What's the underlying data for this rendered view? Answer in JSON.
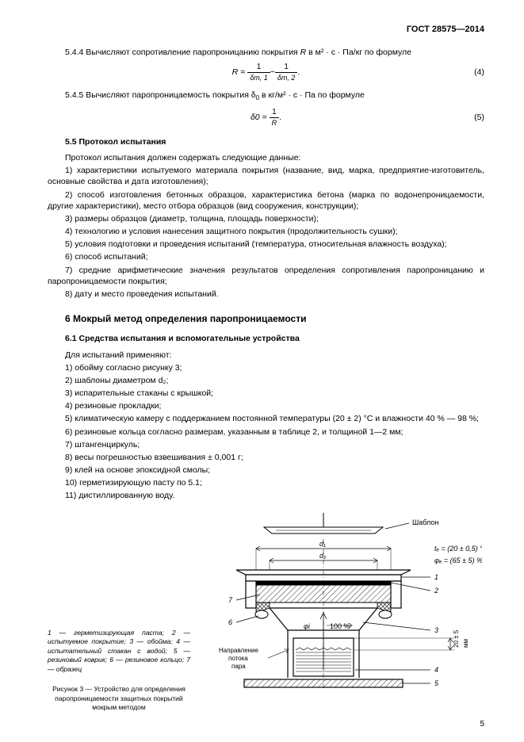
{
  "header": "ГОСТ 28575—2014",
  "p544_pre": "5.4.4 Вычисляют сопротивление паропроницанию покрытия ",
  "p544_R": "R",
  "p544_post": " в м² · с · Па/кг по формуле",
  "formula4": {
    "lhs": "R =",
    "f1_num": "1",
    "f1_den": "δm, 1",
    "minus": " − ",
    "f2_num": "1",
    "f2_den": "δm, 2",
    "dot": ".",
    "num": "(4)"
  },
  "p545_pre": "5.4.5 Вычисляют паропроницаемость покрытия δ",
  "p545_sub": "0",
  "p545_post": " в кг/м² · с · Па по формуле",
  "formula5": {
    "lhs": "δ0 =",
    "num_top": "1",
    "den": "R",
    "dot": ".",
    "num": "(5)"
  },
  "s55_title": "5.5 Протокол испытания",
  "s55_intro": "Протокол испытания должен содержать следующие данные:",
  "s55_items": [
    "1) характеристики испытуемого материала покрытия (название, вид, марка, предприятие-изготовитель, основные свойства и дата изготовления);",
    "2) способ изготовления бетонных образцов, характеристика бетона (марка по водонепроницаемости, другие характеристики), место отбора образцов (вид сооружения, конструкции);",
    "3) размеры образцов (диаметр, толщина, площадь поверхности);",
    "4) технологию и условия нанесения защитного покрытия (продолжительность сушки);",
    "5) условия подготовки и проведения испытаний (температура, относительная влажность воздуха);",
    "6) способ испытаний;",
    "7) средние арифметические значения результатов определения сопротивления паропроницанию и паропроницаемости покрытия;",
    "8) дату и место проведения испытаний."
  ],
  "h6": "6  Мокрый метод определения паропроницаемости",
  "s61_title": "6.1 Средства испытания и вспомогательные устройства",
  "s61_intro": "Для испытаний применяют:",
  "s61_items": [
    "1) обойму согласно рисунку 3;",
    "2) шаблоны диаметром d₂;",
    "3) испарительные стаканы с крышкой;",
    "4) резиновые прокладки;",
    "5) климатическую камеру с поддержанием постоянной температуры (20 ± 2) °C и влажности 40 % — 98 %;",
    "6) резиновые кольца согласно размерам, указанным в таблице 2, и толщиной 1—2 мм;",
    "7) штангенциркуль;",
    "8) весы погрешностью взвешивания ± 0,001 г;",
    "9) клей на основе эпоксидной смолы;",
    "10) герметизирующую пасту по 5.1;",
    "11) дистиллированную воду."
  ],
  "figure": {
    "legend": "1 — герметизирующая паста; 2 — испытуемое покрытие; 3 — обойма; 4 — испытательный стакан с водой; 5 — резиновый коврик; 6 — резиновое кольцо; 7 — образец",
    "title": "Рисунок 3 — Устройство для определения паропроницаемости защитных покрытий мокрым методом",
    "labels": {
      "shablon": "Шаблон",
      "d1": "d₁",
      "d2": "d₂",
      "te": "tₑ = (20 ± 0,5) °C",
      "phie": "φₑ = (65 ± 5) %",
      "phi_inner": "φi",
      "pct100": "100 %",
      "flow1": "Направление",
      "flow2": "потока",
      "flow3": "пара",
      "mm": "мм",
      "dim": "20 ± 5",
      "n1": "1",
      "n2": "2",
      "n3": "3",
      "n4": "4",
      "n5": "5",
      "n6": "6",
      "n7": "7"
    },
    "colors": {
      "stroke": "#000000",
      "hatch": "#000000",
      "bg": "#ffffff"
    }
  },
  "pageNumber": "5"
}
